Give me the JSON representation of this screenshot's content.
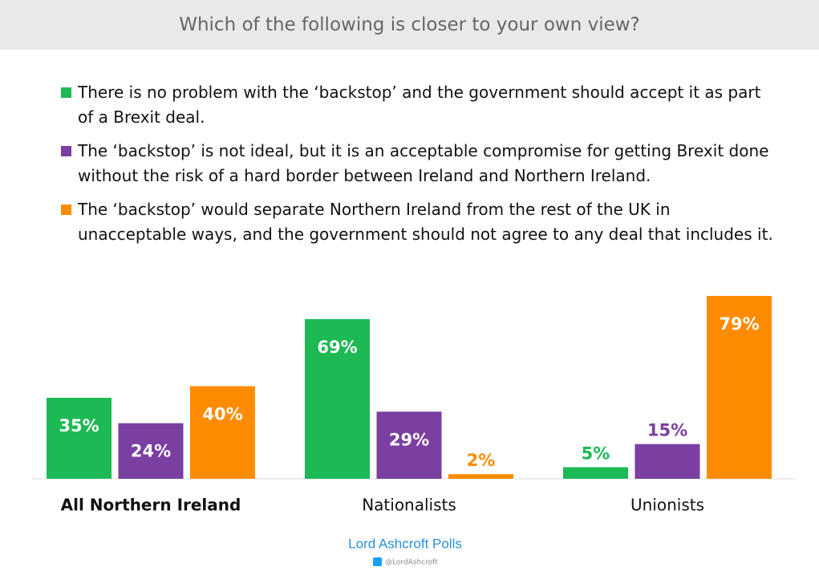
{
  "chart_data": {
    "type": "bar",
    "title": "Which of the following is closer to your own view?",
    "categories": [
      "All Northern Ireland",
      "Nationalists",
      "Unionists"
    ],
    "series": [
      {
        "name": "There is no problem with the ‘backstop’ and the government should accept it as part of a Brexit deal.",
        "color": "#1db954",
        "values": [
          35,
          69,
          5
        ],
        "value_labels": [
          "35%",
          "69%",
          "5%"
        ]
      },
      {
        "name": "The ‘backstop’ is not ideal, but it is an acceptable compromise for getting Brexit done without the risk of a hard border between Ireland and Northern Ireland.",
        "color": "#7a3fa0",
        "values": [
          24,
          29,
          15
        ],
        "value_labels": [
          "24%",
          "29%",
          "15%"
        ]
      },
      {
        "name": "The ‘backstop’ would separate Northern Ireland from the rest of the UK in unacceptable ways, and the government should not agree to any deal that includes it.",
        "color": "#ff8c00",
        "values": [
          40,
          2,
          79
        ],
        "value_labels": [
          "40%",
          "2%",
          "79%"
        ]
      }
    ],
    "source": "Lord Ashcroft Polls",
    "handle": "@LordAshcroft"
  }
}
